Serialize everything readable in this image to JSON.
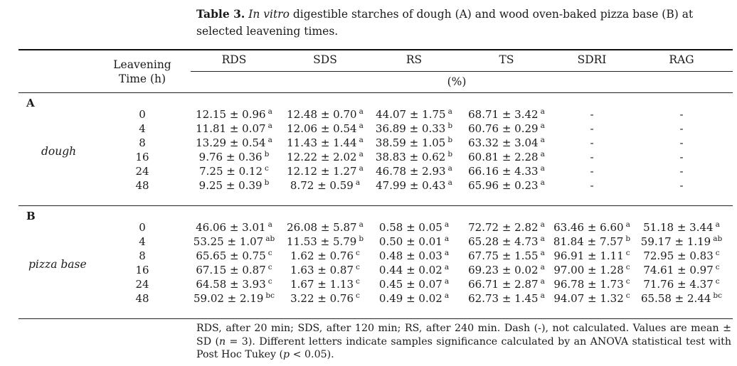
{
  "caption": {
    "label": "Table 3.",
    "italic": "In vitro",
    "rest": "digestible starches of dough (A) and wood oven-baked pizza base (B) at selected leavening times."
  },
  "table": {
    "first_header": "Leavening Time (h)",
    "columns": [
      "RDS",
      "SDS",
      "RS",
      "TS",
      "SDRI",
      "RAG"
    ],
    "unit": "(%)",
    "sections": [
      {
        "label": "A",
        "group": "dough",
        "rows": [
          {
            "time": "0",
            "cells": [
              [
                "12.15 ± 0.96",
                "a"
              ],
              [
                "12.48 ± 0.70",
                "a"
              ],
              [
                "44.07 ± 1.75",
                "a"
              ],
              [
                "68.71 ± 3.42",
                "a"
              ],
              [
                "-",
                ""
              ],
              [
                "-",
                ""
              ]
            ]
          },
          {
            "time": "4",
            "cells": [
              [
                "11.81 ± 0.07",
                "a"
              ],
              [
                "12.06 ± 0.54",
                "a"
              ],
              [
                "36.89 ± 0.33",
                "b"
              ],
              [
                "60.76 ± 0.29",
                "a"
              ],
              [
                "-",
                ""
              ],
              [
                "-",
                ""
              ]
            ]
          },
          {
            "time": "8",
            "cells": [
              [
                "13.29 ± 0.54",
                "a"
              ],
              [
                "11.43 ± 1.44",
                "a"
              ],
              [
                "38.59 ± 1.05",
                "b"
              ],
              [
                "63.32 ± 3.04",
                "a"
              ],
              [
                "-",
                ""
              ],
              [
                "-",
                ""
              ]
            ]
          },
          {
            "time": "16",
            "cells": [
              [
                "9.76 ± 0.36",
                "b"
              ],
              [
                "12.22 ± 2.02",
                "a"
              ],
              [
                "38.83 ± 0.62",
                "b"
              ],
              [
                "60.81 ± 2.28",
                "a"
              ],
              [
                "-",
                ""
              ],
              [
                "-",
                ""
              ]
            ]
          },
          {
            "time": "24",
            "cells": [
              [
                "7.25 ± 0.12",
                "c"
              ],
              [
                "12.12 ± 1.27",
                "a"
              ],
              [
                "46.78 ± 2.93",
                "a"
              ],
              [
                "66.16 ± 4.33",
                "a"
              ],
              [
                "-",
                ""
              ],
              [
                "-",
                ""
              ]
            ]
          },
          {
            "time": "48",
            "cells": [
              [
                "9.25 ± 0.39",
                "b"
              ],
              [
                "8.72 ± 0.59",
                "a"
              ],
              [
                "47.99 ± 0.43",
                "a"
              ],
              [
                "65.96 ± 0.23",
                "a"
              ],
              [
                "-",
                ""
              ],
              [
                "-",
                ""
              ]
            ]
          }
        ]
      },
      {
        "label": "B",
        "group": "pizza base",
        "rows": [
          {
            "time": "0",
            "cells": [
              [
                "46.06 ± 3.01",
                "a"
              ],
              [
                "26.08 ± 5.87",
                "a"
              ],
              [
                "0.58 ± 0.05",
                "a"
              ],
              [
                "72.72 ± 2.82",
                "a"
              ],
              [
                "63.46 ± 6.60",
                "a"
              ],
              [
                "51.18 ± 3.44",
                "a"
              ]
            ]
          },
          {
            "time": "4",
            "cells": [
              [
                "53.25 ± 1.07",
                "ab"
              ],
              [
                "11.53 ± 5.79",
                "b"
              ],
              [
                "0.50 ± 0.01",
                "a"
              ],
              [
                "65.28 ± 4.73",
                "a"
              ],
              [
                "81.84 ± 7.57",
                "b"
              ],
              [
                "59.17 ± 1.19",
                "ab"
              ]
            ]
          },
          {
            "time": "8",
            "cells": [
              [
                "65.65 ± 0.75",
                "c"
              ],
              [
                "1.62 ± 0.76",
                "c"
              ],
              [
                "0.48 ± 0.03",
                "a"
              ],
              [
                "67.75 ± 1.55",
                "a"
              ],
              [
                "96.91 ± 1.11",
                "c"
              ],
              [
                "72.95 ± 0.83",
                "c"
              ]
            ]
          },
          {
            "time": "16",
            "cells": [
              [
                "67.15 ± 0.87",
                "c"
              ],
              [
                "1.63 ± 0.87",
                "c"
              ],
              [
                "0.44 ± 0.02",
                "a"
              ],
              [
                "69.23 ± 0.02",
                "a"
              ],
              [
                "97.00 ± 1.28",
                "c"
              ],
              [
                "74.61 ± 0.97",
                "c"
              ]
            ]
          },
          {
            "time": "24",
            "cells": [
              [
                "64.58 ± 3.93",
                "c"
              ],
              [
                "1.67 ± 1.13",
                "c"
              ],
              [
                "0.45 ± 0.07",
                "a"
              ],
              [
                "66.71 ± 2.87",
                "a"
              ],
              [
                "96.78 ± 1.73",
                "c"
              ],
              [
                "71.76 ± 4.37",
                "c"
              ]
            ]
          },
          {
            "time": "48",
            "cells": [
              [
                "59.02 ± 2.19",
                "bc"
              ],
              [
                "3.22 ± 0.76",
                "c"
              ],
              [
                "0.49 ± 0.02",
                "a"
              ],
              [
                "62.73 ± 1.45",
                "a"
              ],
              [
                "94.07 ± 1.32",
                "c"
              ],
              [
                "65.58 ± 2.44",
                "bc"
              ]
            ]
          }
        ]
      }
    ]
  },
  "footnote": {
    "line1": "RDS, after 20 min; SDS, after 120 min; RS, after 240 min. Dash (-), not calculated. Values are mean ± SD (",
    "n_italic": "n",
    "line1_end": " = 3).",
    "line2": "Different letters indicate samples significance calculated by an ANOVA statistical test with Post Hoc Tukey (",
    "p_italic": "p",
    "line2_end": " < 0.05)."
  }
}
